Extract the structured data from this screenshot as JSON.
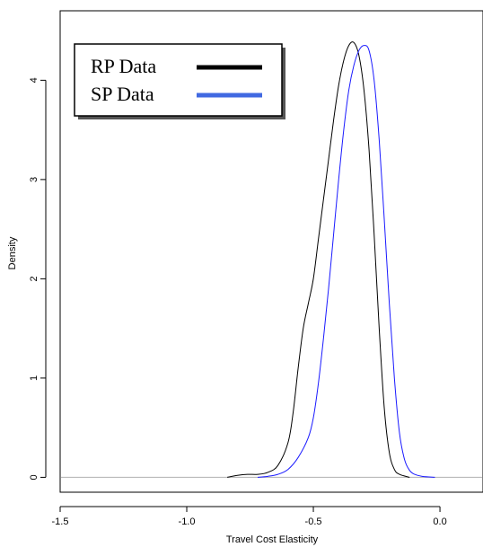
{
  "chart_data": {
    "type": "line",
    "title": "",
    "xlabel": "Travel Cost Elasticity",
    "ylabel": "Density",
    "xlim": [
      -1.5,
      0.17
    ],
    "ylim": [
      -0.15,
      4.7
    ],
    "x_ticks": [
      "-1.5",
      "-1.0",
      "-0.5",
      "0.0"
    ],
    "x_tick_values": [
      -1.5,
      -1.0,
      -0.5,
      0.0
    ],
    "y_ticks": [
      "0",
      "1",
      "2",
      "3",
      "4"
    ],
    "y_tick_values": [
      0,
      1,
      2,
      3,
      4
    ],
    "grid": false,
    "baseline": {
      "y": 0,
      "color": "#b0b0b0"
    },
    "legend_position": "top-left",
    "series": [
      {
        "name": "RP Data",
        "color": "#000000",
        "legend_color": "#000000",
        "points": [
          [
            -0.84,
            0.0
          ],
          [
            -0.8,
            0.02
          ],
          [
            -0.76,
            0.03
          ],
          [
            -0.72,
            0.03
          ],
          [
            -0.68,
            0.05
          ],
          [
            -0.64,
            0.12
          ],
          [
            -0.6,
            0.35
          ],
          [
            -0.58,
            0.65
          ],
          [
            -0.56,
            1.1
          ],
          [
            -0.54,
            1.5
          ],
          [
            -0.52,
            1.75
          ],
          [
            -0.5,
            2.0
          ],
          [
            -0.48,
            2.4
          ],
          [
            -0.46,
            2.8
          ],
          [
            -0.44,
            3.2
          ],
          [
            -0.42,
            3.6
          ],
          [
            -0.4,
            3.95
          ],
          [
            -0.38,
            4.2
          ],
          [
            -0.36,
            4.35
          ],
          [
            -0.34,
            4.38
          ],
          [
            -0.32,
            4.25
          ],
          [
            -0.3,
            3.9
          ],
          [
            -0.28,
            3.3
          ],
          [
            -0.26,
            2.45
          ],
          [
            -0.24,
            1.5
          ],
          [
            -0.22,
            0.7
          ],
          [
            -0.2,
            0.25
          ],
          [
            -0.18,
            0.08
          ],
          [
            -0.16,
            0.03
          ],
          [
            -0.12,
            0.0
          ]
        ]
      },
      {
        "name": "SP Data",
        "color": "#1a1aff",
        "legend_color": "#4169e1",
        "points": [
          [
            -0.72,
            0.0
          ],
          [
            -0.68,
            0.01
          ],
          [
            -0.64,
            0.03
          ],
          [
            -0.6,
            0.08
          ],
          [
            -0.56,
            0.2
          ],
          [
            -0.52,
            0.4
          ],
          [
            -0.5,
            0.6
          ],
          [
            -0.48,
            0.95
          ],
          [
            -0.46,
            1.4
          ],
          [
            -0.44,
            1.9
          ],
          [
            -0.42,
            2.45
          ],
          [
            -0.4,
            3.0
          ],
          [
            -0.38,
            3.5
          ],
          [
            -0.36,
            3.9
          ],
          [
            -0.34,
            4.15
          ],
          [
            -0.32,
            4.3
          ],
          [
            -0.3,
            4.35
          ],
          [
            -0.28,
            4.3
          ],
          [
            -0.26,
            4.0
          ],
          [
            -0.24,
            3.4
          ],
          [
            -0.22,
            2.6
          ],
          [
            -0.2,
            1.75
          ],
          [
            -0.18,
            1.0
          ],
          [
            -0.16,
            0.45
          ],
          [
            -0.14,
            0.18
          ],
          [
            -0.12,
            0.07
          ],
          [
            -0.1,
            0.03
          ],
          [
            -0.07,
            0.01
          ],
          [
            -0.02,
            0.0
          ]
        ]
      }
    ]
  }
}
